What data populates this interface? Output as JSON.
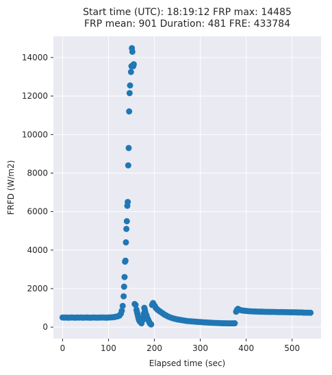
{
  "chart_data": {
    "type": "scatter",
    "title_lines": [
      "Start time (UTC): 18:19:12 FRP max: 14485",
      "FRP mean: 901 Duration: 481 FRE: 433784"
    ],
    "xlabel": "Elapsed time (sec)",
    "ylabel": "FRFD (W/m2)",
    "xlim": [
      -20,
      563
    ],
    "ylim": [
      -600,
      15100
    ],
    "xticks": [
      0,
      100,
      200,
      300,
      400,
      500
    ],
    "yticks": [
      0,
      2000,
      4000,
      6000,
      8000,
      10000,
      12000,
      14000
    ],
    "grid": true,
    "background": "#eaeaf2",
    "marker_color": "#1f77b4",
    "series": [
      {
        "points": [
          [
            0,
            500
          ],
          [
            4,
            495
          ],
          [
            8,
            500
          ],
          [
            12,
            490
          ],
          [
            16,
            495
          ],
          [
            20,
            500
          ],
          [
            24,
            495
          ],
          [
            28,
            490
          ],
          [
            32,
            500
          ],
          [
            36,
            495
          ],
          [
            40,
            500
          ],
          [
            44,
            490
          ],
          [
            48,
            495
          ],
          [
            52,
            500
          ],
          [
            56,
            495
          ],
          [
            60,
            490
          ],
          [
            64,
            495
          ],
          [
            68,
            500
          ],
          [
            72,
            495
          ],
          [
            76,
            490
          ],
          [
            80,
            500
          ],
          [
            84,
            495
          ],
          [
            88,
            500
          ],
          [
            92,
            495
          ],
          [
            96,
            490
          ],
          [
            100,
            500
          ],
          [
            104,
            505
          ],
          [
            108,
            510
          ],
          [
            112,
            520
          ],
          [
            116,
            540
          ],
          [
            120,
            560
          ],
          [
            124,
            600
          ],
          [
            127,
            700
          ],
          [
            129,
            850
          ],
          [
            131,
            1100
          ],
          [
            133,
            1600
          ],
          [
            134,
            2100
          ],
          [
            135,
            2600
          ],
          [
            136,
            3400
          ],
          [
            137,
            3450
          ],
          [
            138,
            4400
          ],
          [
            139,
            5100
          ],
          [
            140,
            5500
          ],
          [
            141,
            6300
          ],
          [
            142,
            6500
          ],
          [
            143,
            8400
          ],
          [
            144,
            9300
          ],
          [
            145,
            11200
          ],
          [
            146,
            12150
          ],
          [
            147,
            12550
          ],
          [
            149,
            13250
          ],
          [
            150,
            13550
          ],
          [
            151,
            14485
          ],
          [
            152,
            14300
          ],
          [
            153,
            13600
          ],
          [
            154,
            13550
          ],
          [
            155,
            13650
          ],
          [
            157,
            1200
          ],
          [
            159,
            1150
          ],
          [
            161,
            900
          ],
          [
            162,
            800
          ],
          [
            163,
            700
          ],
          [
            164,
            600
          ],
          [
            165,
            500
          ],
          [
            166,
            400
          ],
          [
            167,
            350
          ],
          [
            168,
            300
          ],
          [
            170,
            250
          ],
          [
            172,
            200
          ],
          [
            174,
            350
          ],
          [
            176,
            500
          ],
          [
            177,
            700
          ],
          [
            178,
            1000
          ],
          [
            179,
            900
          ],
          [
            180,
            800
          ],
          [
            181,
            700
          ],
          [
            182,
            650
          ],
          [
            183,
            600
          ],
          [
            184,
            500
          ],
          [
            185,
            450
          ],
          [
            186,
            400
          ],
          [
            187,
            350
          ],
          [
            188,
            300
          ],
          [
            189,
            250
          ],
          [
            190,
            200
          ],
          [
            191,
            180
          ],
          [
            192,
            150
          ],
          [
            193,
            140
          ],
          [
            195,
            1150
          ],
          [
            197,
            1250
          ],
          [
            199,
            1150
          ],
          [
            201,
            1100
          ],
          [
            203,
            1000
          ],
          [
            205,
            950
          ],
          [
            207,
            900
          ],
          [
            210,
            850
          ],
          [
            213,
            800
          ],
          [
            216,
            750
          ],
          [
            219,
            700
          ],
          [
            222,
            650
          ],
          [
            226,
            600
          ],
          [
            230,
            550
          ],
          [
            235,
            500
          ],
          [
            240,
            460
          ],
          [
            245,
            430
          ],
          [
            250,
            400
          ],
          [
            255,
            380
          ],
          [
            260,
            360
          ],
          [
            265,
            340
          ],
          [
            270,
            320
          ],
          [
            275,
            310
          ],
          [
            280,
            300
          ],
          [
            285,
            290
          ],
          [
            290,
            280
          ],
          [
            295,
            270
          ],
          [
            300,
            265
          ],
          [
            305,
            255
          ],
          [
            310,
            245
          ],
          [
            315,
            240
          ],
          [
            320,
            230
          ],
          [
            325,
            225
          ],
          [
            330,
            220
          ],
          [
            335,
            215
          ],
          [
            340,
            210
          ],
          [
            345,
            205
          ],
          [
            350,
            200
          ],
          [
            355,
            200
          ],
          [
            360,
            195
          ],
          [
            365,
            195
          ],
          [
            370,
            195
          ],
          [
            375,
            200
          ],
          [
            378,
            800
          ],
          [
            380,
            900
          ],
          [
            382,
            950
          ],
          [
            385,
            900
          ],
          [
            388,
            880
          ],
          [
            392,
            860
          ],
          [
            396,
            850
          ],
          [
            400,
            840
          ],
          [
            405,
            830
          ],
          [
            410,
            820
          ],
          [
            415,
            815
          ],
          [
            420,
            810
          ],
          [
            425,
            805
          ],
          [
            430,
            800
          ],
          [
            435,
            800
          ],
          [
            440,
            795
          ],
          [
            445,
            795
          ],
          [
            450,
            790
          ],
          [
            455,
            790
          ],
          [
            460,
            790
          ],
          [
            465,
            785
          ],
          [
            470,
            780
          ],
          [
            475,
            780
          ],
          [
            480,
            780
          ],
          [
            485,
            775
          ],
          [
            490,
            775
          ],
          [
            495,
            770
          ],
          [
            500,
            770
          ],
          [
            505,
            770
          ],
          [
            510,
            765
          ],
          [
            515,
            760
          ],
          [
            520,
            760
          ],
          [
            525,
            755
          ],
          [
            530,
            750
          ],
          [
            535,
            750
          ],
          [
            540,
            745
          ]
        ]
      }
    ]
  }
}
